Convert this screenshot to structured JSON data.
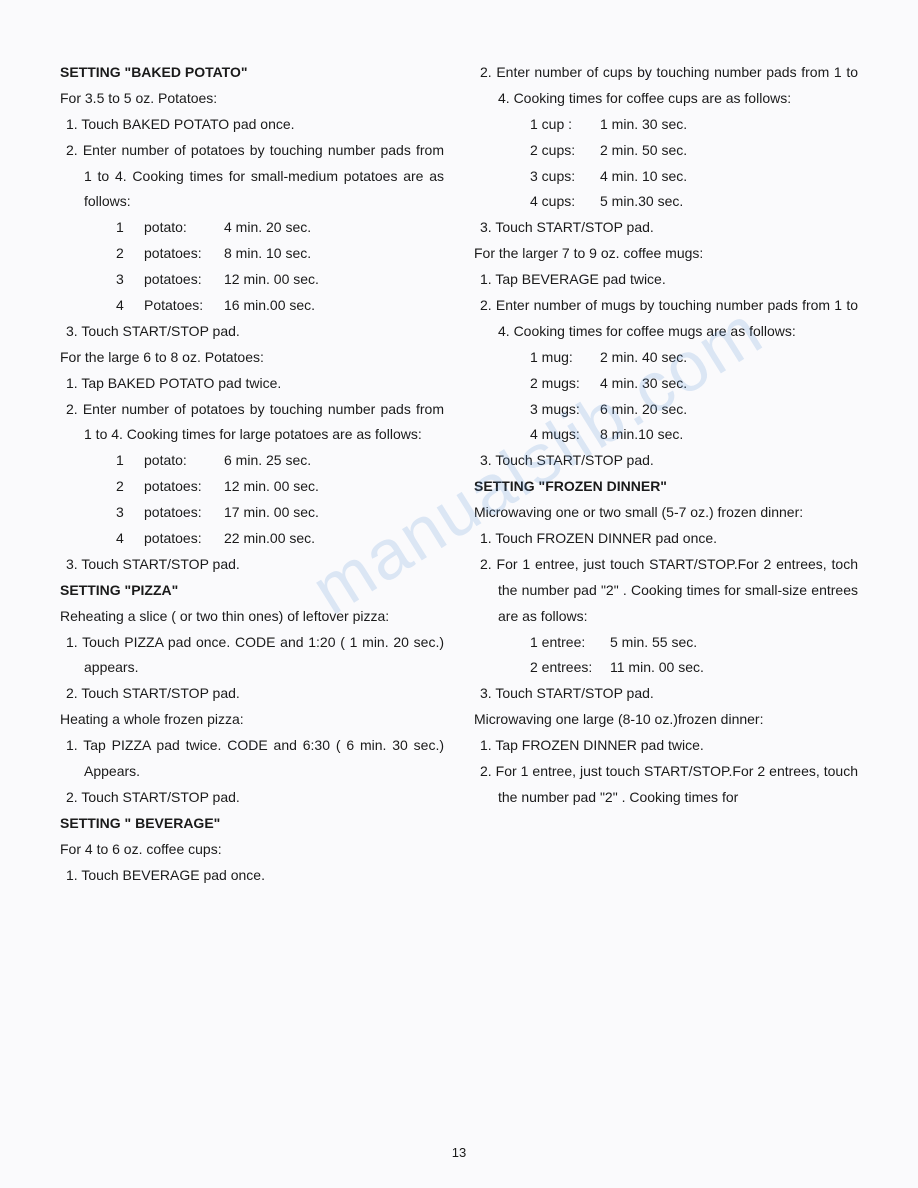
{
  "page_number": "13",
  "watermark": "manualslib.com",
  "left": {
    "s1_heading": "SETTING \"BAKED POTATO\"",
    "s1_intro": "For 3.5 to 5 oz. Potatoes:",
    "s1_step1": "1. Touch BAKED POTATO pad once.",
    "s1_step2": "2. Enter number of potatoes by touching number pads from 1 to 4. Cooking times for small-medium potatoes are as follows:",
    "s1_t": [
      [
        "1",
        "potato:",
        "4 min. 20 sec."
      ],
      [
        "2",
        "potatoes:",
        "8 min. 10 sec."
      ],
      [
        "3",
        "potatoes:",
        "12 min. 00 sec."
      ],
      [
        "4",
        "Potatoes:",
        "16 min.00 sec."
      ]
    ],
    "s1_step3": "3. Touch START/STOP pad.",
    "s1b_intro": "For the large 6 to 8 oz. Potatoes:",
    "s1b_step1": "1. Tap BAKED POTATO pad twice.",
    "s1b_step2": "2. Enter number of potatoes by touching number pads from 1 to 4. Cooking times for large potatoes are as follows:",
    "s1b_t": [
      [
        "1",
        "potato:",
        "6 min. 25 sec."
      ],
      [
        "2",
        "potatoes:",
        "12 min. 00 sec."
      ],
      [
        "3",
        "potatoes:",
        "17 min. 00 sec."
      ],
      [
        "4",
        "potatoes:",
        "22 min.00 sec."
      ]
    ],
    "s1b_step3": "3. Touch START/STOP pad.",
    "s2_heading": "SETTING \"PIZZA\"",
    "s2_intro": "Reheating a slice ( or two thin ones) of leftover pizza:",
    "s2_step1": "1. Touch PIZZA pad once. CODE and 1:20 ( 1 min. 20 sec.) appears.",
    "s2_step2": "2. Touch START/STOP pad.",
    "s2b_intro": "Heating a whole frozen pizza:",
    "s2b_step1": "1. Tap PIZZA pad twice. CODE and 6:30 ( 6 min. 30 sec.) Appears.",
    "s2b_step2": "2. Touch START/STOP pad.",
    "s3_heading": "SETTING \" BEVERAGE\"",
    "s3_intro": "For 4 to 6 oz. coffee cups:",
    "s3_step1": "1. Touch BEVERAGE pad once."
  },
  "right": {
    "r1_step2": "2. Enter number of cups by touching number pads from 1 to 4. Cooking times for coffee cups are as follows:",
    "r1_t": [
      [
        "1 cup  :",
        "1 min. 30 sec."
      ],
      [
        "2 cups:",
        "2 min. 50 sec."
      ],
      [
        "3 cups:",
        "4 min. 10 sec."
      ],
      [
        "4 cups:",
        "5 min.30 sec."
      ]
    ],
    "r1_step3": "3. Touch START/STOP pad.",
    "r1b_intro": "For the larger 7 to 9 oz. coffee mugs:",
    "r1b_step1": "1. Tap BEVERAGE pad twice.",
    "r1b_step2": "2. Enter number of mugs by touching number pads from 1 to 4. Cooking times for coffee mugs are as follows:",
    "r1b_t": [
      [
        "1 mug:",
        "2 min. 40 sec."
      ],
      [
        "2 mugs:",
        "4 min. 30 sec."
      ],
      [
        "3 mugs:",
        "6 min. 20 sec."
      ],
      [
        "4 mugs:",
        "8 min.10 sec."
      ]
    ],
    "r1b_step3": "3. Touch START/STOP pad.",
    "r2_heading": "SETTING \"FROZEN DINNER\"",
    "r2_intro": "Microwaving one or two small (5-7 oz.) frozen dinner:",
    "r2_step1": "1. Touch FROZEN DINNER pad once.",
    "r2_step2": "2. For 1 entree, just touch START/STOP.For 2 entrees, toch the number pad \"2\" . Cooking times for small-size entrees are as follows:",
    "r2_t": [
      [
        "1 entree:",
        "5 min. 55 sec."
      ],
      [
        "2 entrees:",
        "11 min. 00 sec."
      ]
    ],
    "r2_step3": "3. Touch START/STOP pad.",
    "r2b_intro": "Microwaving one large (8-10 oz.)frozen dinner:",
    "r2b_step1": "1. Tap FROZEN DINNER pad twice.",
    "r2b_step2": "2. For 1 entree, just touch START/STOP.For 2 entrees, touch the number pad \"2\" . Cooking times for"
  }
}
